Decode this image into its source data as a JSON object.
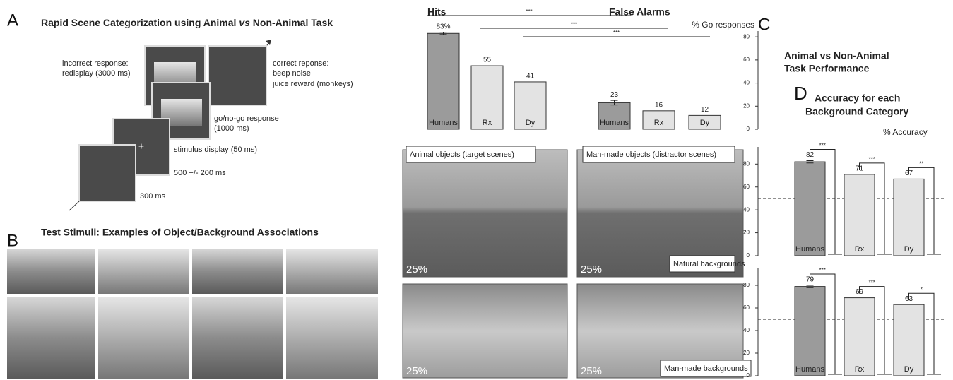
{
  "panel_a": {
    "letter": "A",
    "title": [
      "Rapid Scene Categorization using Animal ",
      "vs",
      " Non-Animal Task"
    ],
    "labels": [
      "incorrect response:",
      "redisplay (3000 ms)",
      "correct reponse:",
      "beep noise",
      "juice reward (monkeys)",
      "go/no-go response",
      "(1000 ms)",
      "stimulus display (50 ms)",
      "500 +/- 200 ms",
      "300 ms",
      "+"
    ]
  },
  "panel_b": {
    "letter": "B",
    "title": "Test Stimuli: Examples of Object/Background Associations"
  },
  "photos": {
    "column_labels": [
      "Animal objects (target scenes)",
      "Man-made objects (distractor scenes)"
    ],
    "row_labels": [
      "Natural backgrounds",
      "Man-made backgrounds"
    ],
    "proportions": [
      "25%",
      "25%",
      "25%",
      "25%"
    ]
  },
  "chart_data": [
    {
      "type": "bar",
      "panel": "C",
      "title": [
        "Animal vs Non-Animal",
        "Task Performance"
      ],
      "ylabel": "% Go responses",
      "group_labels": [
        "Hits",
        "False Alarms"
      ],
      "categories": [
        "Humans",
        "Rx",
        "Dy",
        "Humans",
        "Rx",
        "Dy"
      ],
      "values": [
        83,
        55,
        41,
        23,
        16,
        12
      ],
      "value_labels": [
        "83%",
        "55",
        "41",
        "23",
        "16",
        "12"
      ],
      "errors": [
        1,
        null,
        null,
        2,
        null,
        null
      ],
      "colors": [
        "#9b9b9b",
        "#e3e3e3",
        "#e3e3e3",
        "#9b9b9b",
        "#e3e3e3",
        "#e3e3e3"
      ],
      "significance": [
        "***",
        "***",
        "***"
      ],
      "ylim": [
        0,
        85
      ],
      "yticks": [
        0,
        20,
        40,
        60,
        80
      ],
      "grid": false
    },
    {
      "type": "bar",
      "panel": "D",
      "title": [
        "Accuracy for each",
        "Background Category"
      ],
      "ylabel": "% Accuracy",
      "categories": [
        "Humans",
        "Rx",
        "Dy"
      ],
      "values": [
        82,
        71,
        67
      ],
      "errors": [
        1,
        null,
        null
      ],
      "colors": [
        "#9b9b9b",
        "#e3e3e3",
        "#e3e3e3"
      ],
      "significance": [
        "***",
        "***",
        "**"
      ],
      "chance": 50,
      "ylim": [
        0,
        95
      ],
      "yticks": [
        0,
        20,
        40,
        60,
        80
      ],
      "grid": false
    },
    {
      "type": "bar",
      "categories": [
        "Humans",
        "Rx",
        "Dy"
      ],
      "values": [
        79,
        69,
        63
      ],
      "errors": [
        1,
        null,
        null
      ],
      "colors": [
        "#9b9b9b",
        "#e3e3e3",
        "#e3e3e3"
      ],
      "significance": [
        "***",
        "***",
        "*"
      ],
      "chance": 50,
      "ylim": [
        0,
        95
      ],
      "yticks": [
        0,
        20,
        40,
        60,
        80
      ],
      "grid": false
    }
  ]
}
